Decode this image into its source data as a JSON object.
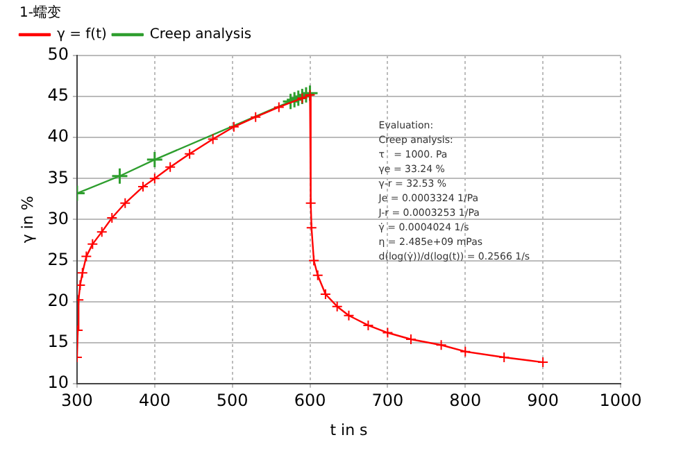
{
  "chart_data": {
    "type": "line",
    "xlabel": "t in s",
    "ylabel": "γ in %",
    "legend_title": "1-蠕变",
    "legend": "top left",
    "grid": true,
    "marker": "cross",
    "xlim": [
      300,
      1000
    ],
    "xticks": [
      300,
      400,
      500,
      600,
      700,
      800,
      900,
      1000
    ],
    "ylim": [
      10,
      50
    ],
    "yticks": [
      10,
      15,
      20,
      25,
      30,
      35,
      40,
      45,
      50
    ],
    "series": [
      {
        "name": "γ = f(t)",
        "color": "#ff0000",
        "x": [
          300,
          301,
          302,
          304,
          307,
          312,
          320,
          332,
          345,
          362,
          385,
          400,
          420,
          445,
          475,
          502,
          530,
          560,
          590,
          600,
          601,
          602,
          605,
          610,
          620,
          635,
          650,
          675,
          700,
          730,
          769,
          800,
          850,
          900
        ],
        "values": [
          13.2,
          16.5,
          20.2,
          22,
          23.5,
          25.5,
          27,
          28.5,
          30.2,
          32,
          34,
          35,
          36.4,
          38,
          39.8,
          41.3,
          42.5,
          43.7,
          44.8,
          45.2,
          32,
          29,
          25,
          23.2,
          20.9,
          19.4,
          18.3,
          17.1,
          16.2,
          15.4,
          14.7,
          13.9,
          13.2,
          12.6
        ]
      },
      {
        "name": "Creep analysis",
        "color": "#2e9e2e",
        "x": [
          300,
          355,
          400,
          575,
          580,
          585,
          590,
          595,
          600
        ],
        "values": [
          33.2,
          35.3,
          37.3,
          44.4,
          44.6,
          44.8,
          45,
          45.2,
          45.4
        ]
      }
    ],
    "annotations": [
      "Evaluation:",
      "Creep analysis:",
      "τ   = 1000. Pa",
      "γe = 33.24 %",
      "γ-r = 32.53 %",
      "Je = 0.0003324 1/Pa",
      "J-r = 0.0003253 1/Pa",
      "γ̇ = 0.0004024 1/s",
      "η = 2.485e+09 mPas",
      "d(log(γ̇))/d(log(t)) = 0.2566 1/s"
    ]
  }
}
